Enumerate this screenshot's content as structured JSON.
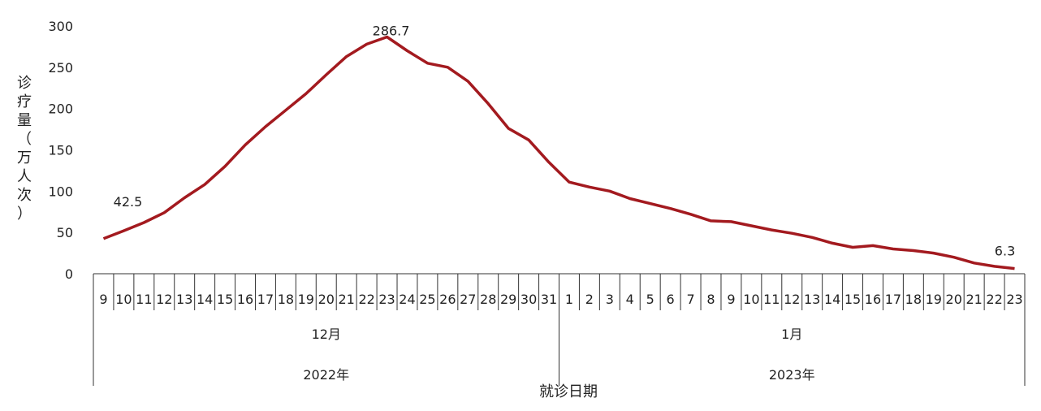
{
  "chart_data": {
    "type": "line",
    "title": "",
    "ylabel": "诊疗量（万人次）",
    "xlabel": "就诊日期",
    "ylim": [
      0,
      300
    ],
    "yticks": [
      0,
      50,
      100,
      150,
      200,
      250,
      300
    ],
    "grid": false,
    "line_color": "#a31a1f",
    "groups": [
      {
        "month": "12月",
        "year": "2022年",
        "days": [
          "9",
          "10",
          "11",
          "12",
          "13",
          "14",
          "15",
          "16",
          "17",
          "18",
          "19",
          "20",
          "21",
          "22",
          "23",
          "24",
          "25",
          "26",
          "27",
          "28",
          "29",
          "30",
          "31"
        ]
      },
      {
        "month": "1月",
        "year": "2023年",
        "days": [
          "1",
          "2",
          "3",
          "4",
          "5",
          "6",
          "7",
          "8",
          "9",
          "10",
          "11",
          "12",
          "13",
          "14",
          "15",
          "16",
          "17",
          "18",
          "19",
          "20",
          "21",
          "22",
          "23"
        ]
      }
    ],
    "series": [
      {
        "values": [
          42.5,
          52,
          62,
          74,
          92,
          108,
          130,
          156,
          178,
          198,
          218,
          241,
          263,
          278,
          286.7,
          270,
          255,
          250,
          233,
          206,
          176,
          162,
          135,
          111,
          105,
          100,
          91,
          85,
          79,
          72,
          64,
          63,
          58,
          53,
          49,
          44,
          37,
          32,
          34,
          30,
          28,
          25,
          20,
          13,
          9,
          6.3
        ]
      }
    ],
    "annotations": [
      {
        "index": 0,
        "text": "42.5"
      },
      {
        "index": 14,
        "text": "286.7"
      },
      {
        "index": 45,
        "text": "6.3"
      }
    ]
  }
}
